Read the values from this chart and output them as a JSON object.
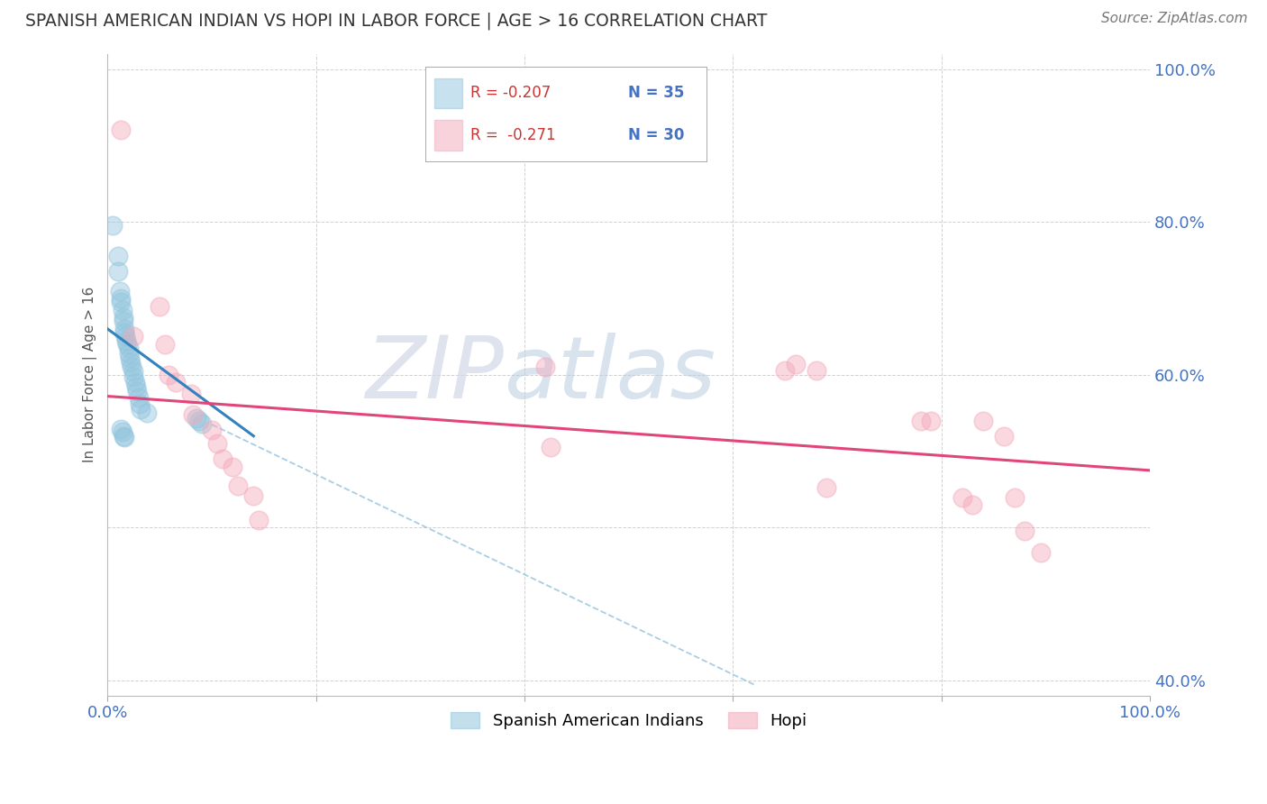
{
  "title": "SPANISH AMERICAN INDIAN VS HOPI IN LABOR FORCE | AGE > 16 CORRELATION CHART",
  "source": "Source: ZipAtlas.com",
  "ylabel": "In Labor Force | Age > 16",
  "legend_label1": "Spanish American Indians",
  "legend_label2": "Hopi",
  "r1": -0.207,
  "n1": 35,
  "r2": -0.271,
  "n2": 30,
  "xlim": [
    0.0,
    1.0
  ],
  "ylim": [
    0.18,
    1.02
  ],
  "color_blue": "#92c5de",
  "color_pink": "#f4a9bb",
  "color_line_blue": "#3182bd",
  "color_line_pink": "#e0457b",
  "color_dashed": "#a8cee4",
  "watermark_zip": "ZIP",
  "watermark_atlas": "atlas",
  "blue_points_x": [
    0.005,
    0.01,
    0.01,
    0.012,
    0.013,
    0.013,
    0.014,
    0.015,
    0.015,
    0.016,
    0.016,
    0.017,
    0.018,
    0.019,
    0.02,
    0.02,
    0.021,
    0.022,
    0.023,
    0.025,
    0.025,
    0.026,
    0.027,
    0.028,
    0.03,
    0.031,
    0.032,
    0.038,
    0.085,
    0.088,
    0.09,
    0.013,
    0.014,
    0.015,
    0.016
  ],
  "blue_points_y": [
    0.795,
    0.755,
    0.735,
    0.71,
    0.7,
    0.695,
    0.685,
    0.675,
    0.67,
    0.66,
    0.655,
    0.65,
    0.645,
    0.64,
    0.635,
    0.628,
    0.622,
    0.616,
    0.61,
    0.605,
    0.598,
    0.59,
    0.585,
    0.578,
    0.57,
    0.562,
    0.555,
    0.55,
    0.543,
    0.54,
    0.536,
    0.529,
    0.525,
    0.52,
    0.518
  ],
  "pink_points_x": [
    0.013,
    0.025,
    0.05,
    0.055,
    0.058,
    0.065,
    0.08,
    0.082,
    0.1,
    0.105,
    0.11,
    0.12,
    0.125,
    0.14,
    0.145,
    0.42,
    0.425,
    0.65,
    0.66,
    0.68,
    0.69,
    0.78,
    0.79,
    0.82,
    0.83,
    0.84,
    0.86,
    0.87,
    0.88,
    0.895
  ],
  "pink_points_y": [
    0.92,
    0.65,
    0.69,
    0.64,
    0.6,
    0.59,
    0.575,
    0.548,
    0.528,
    0.51,
    0.49,
    0.48,
    0.455,
    0.442,
    0.41,
    0.61,
    0.505,
    0.606,
    0.614,
    0.606,
    0.452,
    0.54,
    0.54,
    0.44,
    0.43,
    0.54,
    0.52,
    0.44,
    0.396,
    0.368
  ],
  "blue_line_x0": 0.0,
  "blue_line_x1": 0.14,
  "blue_line_y0": 0.66,
  "blue_line_y1": 0.52,
  "pink_line_x0": 0.0,
  "pink_line_x1": 1.0,
  "pink_line_y0": 0.572,
  "pink_line_y1": 0.475,
  "dashed_line_x0": 0.1,
  "dashed_line_x1": 0.62,
  "dashed_line_y0": 0.535,
  "dashed_line_y1": 0.195
}
